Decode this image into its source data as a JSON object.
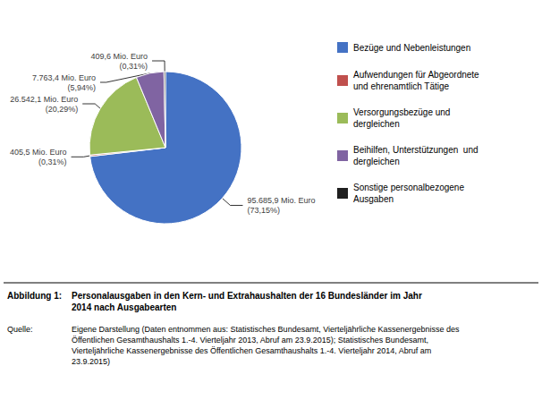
{
  "chart_data": {
    "type": "pie",
    "title": "Abbildung 1:",
    "subtitle": "Personalausgaben in den Kern- und Extrahaushalten der 16 Bundesländer im Jahr\n2014 nach Ausgabearten",
    "categories": [
      "Bezüge und Nebenleistungen",
      "Aufwendungen für Abgeordnete\nund ehrenamtlich Tätige",
      "Versorgungsbezüge und\ndergleichen",
      "Beihilfen, Unterstützungen  und\ndergleichen",
      "Sonstige personalbezogene\nAusgaben"
    ],
    "values": [
      95685.9,
      405.5,
      26542.1,
      7763.4,
      409.6
    ],
    "value_labels": [
      "95.685,9 Mio. Euro\n(73,15%)",
      "405,5 Mio. Euro\n(0,31%)",
      "26.542,1 Mio. Euro\n(20,29%)",
      "7.763,4 Mio. Euro\n(5,94%)",
      "409,6 Mio. Euro\n(0,31%)"
    ],
    "colors": [
      "#4472C4",
      "#C0504D",
      "#9BBB59",
      "#8064A2",
      "#1F1F1F"
    ],
    "data_labels": true,
    "legend": "right",
    "annotations": [
      "Quelle:",
      "Eigene Darstellung (Daten entnommen aus: Statistisches Bundesamt, Vierteljährliche Kassenergebnisse des\nÖffentlichen Gesamthaushalts 1.-4. Vierteljahr 2013, Abruf am 23.9.2015); Statistisches Bundesamt,\nVierteljährliche Kassenergebnisse des Öffentlichen Gesamthaushalts 1.-4. Vierteljahr 2014, Abruf am\n23.9.2015)"
    ]
  }
}
